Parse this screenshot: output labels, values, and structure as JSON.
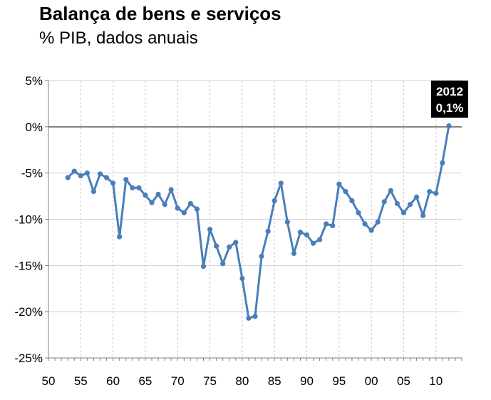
{
  "chart_data": {
    "type": "line",
    "title": "Balança de bens e serviços",
    "subtitle": "% PIB, dados anuais",
    "xlabel": "",
    "ylabel": "",
    "x_ticks": [
      "50",
      "55",
      "60",
      "65",
      "70",
      "75",
      "80",
      "85",
      "90",
      "95",
      "00",
      "05",
      "10"
    ],
    "y_ticks": [
      "5%",
      "0%",
      "-5%",
      "-10%",
      "-15%",
      "-20%",
      "-25%"
    ],
    "xlim": [
      1950,
      2014
    ],
    "ylim": [
      -25,
      5
    ],
    "grid": true,
    "series_color": "#4a7ebb",
    "annotation": {
      "year": "2012",
      "value": "0,1%",
      "bg_color": "#000000",
      "text_color": "#ffffff"
    },
    "x": [
      1953,
      1954,
      1955,
      1956,
      1957,
      1958,
      1959,
      1960,
      1961,
      1962,
      1963,
      1964,
      1965,
      1966,
      1967,
      1968,
      1969,
      1970,
      1971,
      1972,
      1973,
      1974,
      1975,
      1976,
      1977,
      1978,
      1979,
      1980,
      1981,
      1982,
      1983,
      1984,
      1985,
      1986,
      1987,
      1988,
      1989,
      1990,
      1991,
      1992,
      1993,
      1994,
      1995,
      1996,
      1997,
      1998,
      1999,
      2000,
      2001,
      2002,
      2003,
      2004,
      2005,
      2006,
      2007,
      2008,
      2009,
      2010,
      2011,
      2012
    ],
    "values": [
      -5.5,
      -4.8,
      -5.3,
      -5.0,
      -7.0,
      -5.1,
      -5.5,
      -6.1,
      -11.9,
      -5.7,
      -6.6,
      -6.6,
      -7.4,
      -8.2,
      -7.3,
      -8.4,
      -6.8,
      -8.8,
      -9.3,
      -8.3,
      -8.9,
      -15.1,
      -11.1,
      -12.9,
      -14.8,
      -13.0,
      -12.5,
      -16.4,
      -20.7,
      -20.5,
      -14.0,
      -11.3,
      -8.0,
      -6.1,
      -10.3,
      -13.7,
      -11.4,
      -11.7,
      -12.6,
      -12.2,
      -10.5,
      -10.7,
      -6.2,
      -7.0,
      -8.0,
      -9.3,
      -10.5,
      -11.2,
      -10.3,
      -8.1,
      -6.9,
      -8.3,
      -9.3,
      -8.4,
      -7.6,
      -9.6,
      -7.0,
      -7.2,
      -3.9,
      0.1
    ]
  }
}
